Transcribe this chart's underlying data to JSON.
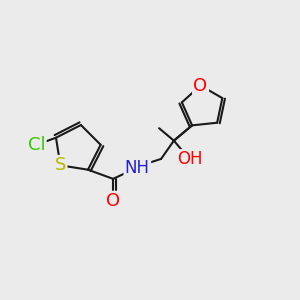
{
  "background_color": "#ebebeb",
  "bond_color": "#1a1a1a",
  "bond_width": 1.5,
  "atom_colors": {
    "Cl": "#33cc00",
    "S": "#b8b800",
    "O": "#ff0000",
    "N": "#2222cc"
  },
  "font_size": 13,
  "figsize": [
    3.0,
    3.0
  ],
  "dpi": 100
}
